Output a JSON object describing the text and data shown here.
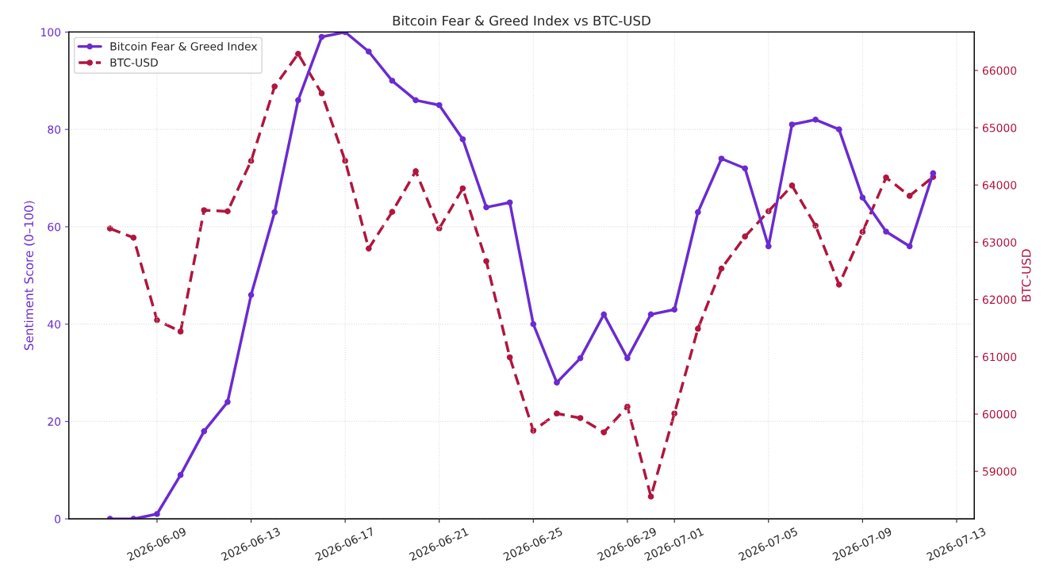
{
  "chart_data": {
    "type": "line",
    "title": "Bitcoin Fear & Greed Index vs BTC-USD",
    "ylabel": "Sentiment Score (0–100)",
    "y2label": "BTC-USD",
    "x": [
      "2026-06-07",
      "2026-06-08",
      "2026-06-09",
      "2026-06-10",
      "2026-06-11",
      "2026-06-12",
      "2026-06-13",
      "2026-06-14",
      "2026-06-15",
      "2026-06-16",
      "2026-06-17",
      "2026-06-18",
      "2026-06-19",
      "2026-06-20",
      "2026-06-21",
      "2026-06-22",
      "2026-06-23",
      "2026-06-24",
      "2026-06-25",
      "2026-06-26",
      "2026-06-27",
      "2026-06-28",
      "2026-06-29",
      "2026-06-30",
      "2026-07-01",
      "2026-07-02",
      "2026-07-03",
      "2026-07-04",
      "2026-07-05",
      "2026-07-06",
      "2026-07-07",
      "2026-07-08",
      "2026-07-09",
      "2026-07-10",
      "2026-07-11",
      "2026-07-12"
    ],
    "series": [
      {
        "name": "Bitcoin Fear & Greed Index",
        "color": "#6a2bd0",
        "line_style": "solid",
        "values": [
          0,
          0,
          1,
          9,
          18,
          24,
          46,
          63,
          86,
          99,
          100,
          96,
          90,
          86,
          85,
          78,
          64,
          65,
          40,
          28,
          33,
          42,
          33,
          42,
          43,
          63,
          74,
          72,
          56,
          81,
          82,
          80,
          66,
          59,
          56,
          71
        ]
      },
      {
        "name": "BTC-USD",
        "color": "#b0163f",
        "line_style": "dashed",
        "axis": "y2",
        "values": [
          63240,
          63080,
          61640,
          61440,
          63560,
          63540,
          64420,
          65720,
          66290,
          65600,
          64420,
          62890,
          63530,
          64240,
          63240,
          63940,
          62670,
          60990,
          59710,
          60010,
          59930,
          59680,
          60130,
          58560,
          60010,
          61490,
          62540,
          63100,
          63540,
          63990,
          63290,
          62260,
          63180,
          64130,
          63810,
          64140
        ]
      }
    ],
    "xlim": [
      "2026-06-05T06:00",
      "2026-07-13T18:00"
    ],
    "xticks": [
      "2026-06-09",
      "2026-06-13",
      "2026-06-17",
      "2026-06-21",
      "2026-06-25",
      "2026-06-29",
      "2026-07-01",
      "2026-07-05",
      "2026-07-09",
      "2026-07-13"
    ],
    "ylim": [
      0,
      100
    ],
    "yticks": [
      0,
      20,
      40,
      60,
      80,
      100
    ],
    "y2lim": [
      58170,
      66670
    ],
    "y2ticks": [
      59000,
      60000,
      61000,
      62000,
      63000,
      64000,
      65000,
      66000
    ],
    "grid": true,
    "legend": "top left",
    "marker": "circle"
  }
}
